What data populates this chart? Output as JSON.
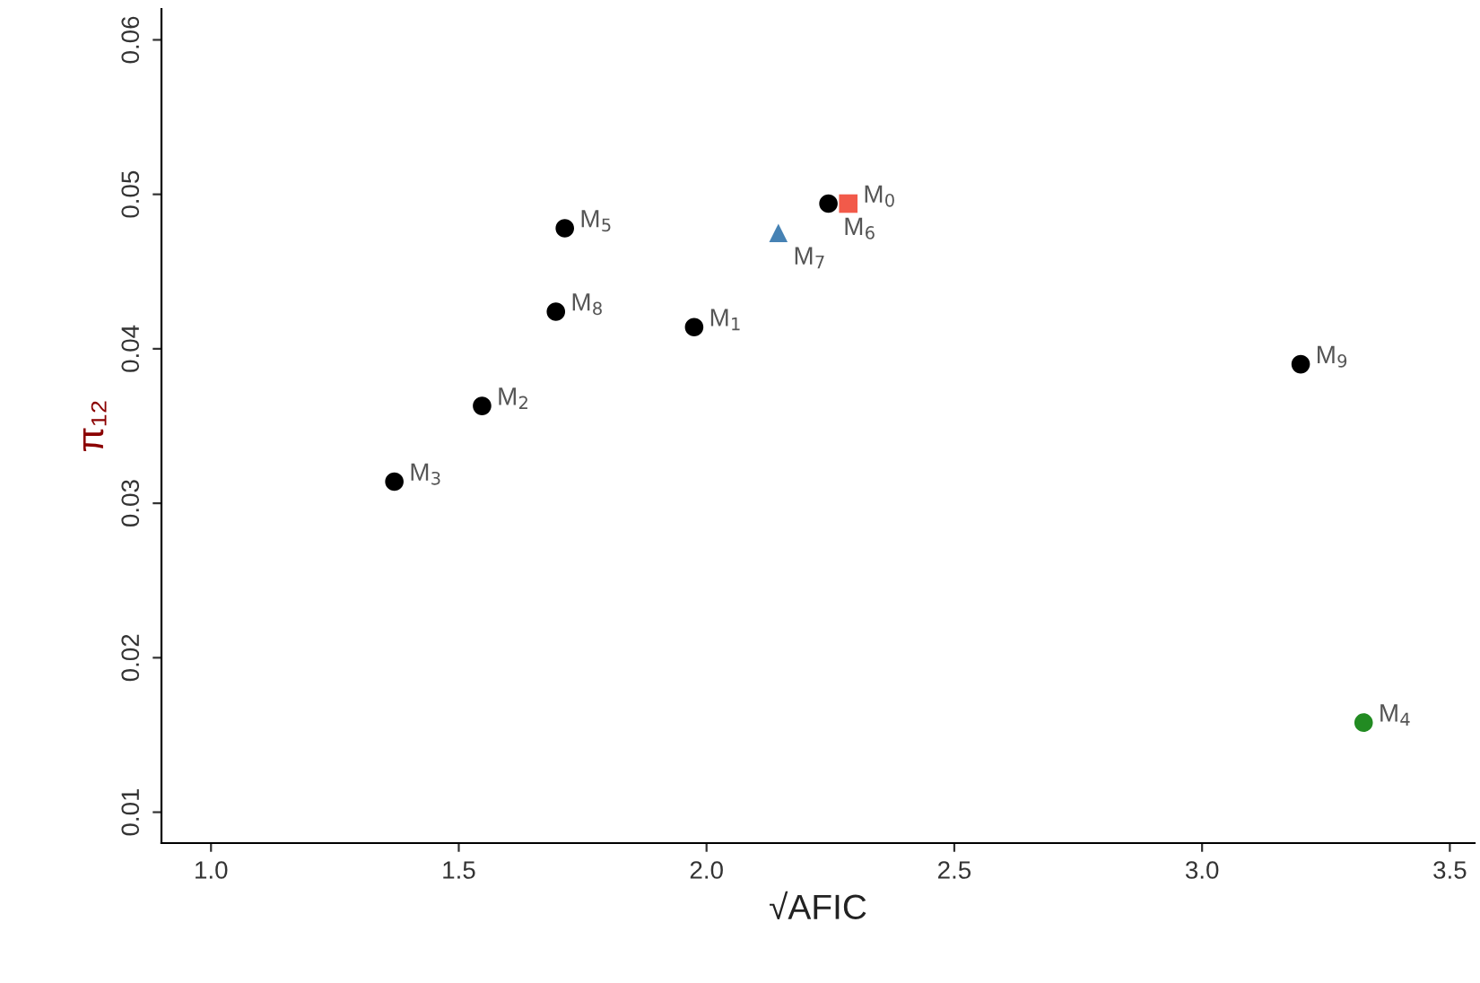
{
  "chart_data": {
    "type": "scatter",
    "xlabel": "√AFIC",
    "ylabel": "π₁₂",
    "xlim": [
      0.9,
      3.55
    ],
    "xticks": [
      {
        "value": 1.0,
        "label": "1.0"
      },
      {
        "value": 1.5,
        "label": "1.5"
      },
      {
        "value": 2.0,
        "label": "2.0"
      },
      {
        "value": 2.5,
        "label": "2.5"
      },
      {
        "value": 3.0,
        "label": "3.0"
      },
      {
        "value": 3.5,
        "label": "3.5"
      }
    ],
    "ylim": [
      0.008,
      0.062
    ],
    "yticks": [
      0.01,
      0.02,
      0.03,
      0.04,
      0.05,
      0.06
    ],
    "series": [
      {
        "color": "#000000",
        "marker": "circle",
        "x": [
          1.37,
          1.547,
          1.696,
          1.714,
          1.975,
          2.246,
          3.199
        ],
        "values": [
          0.0314,
          0.0363,
          0.0424,
          0.0478,
          0.0414,
          0.0494,
          0.039
        ]
      },
      {
        "color": "#f25a4a",
        "marker": "square",
        "x": [
          2.286
        ],
        "values": [
          0.0494
        ]
      },
      {
        "color": "#4682b4",
        "marker": "triangle",
        "x": [
          2.145
        ],
        "values": [
          0.0475
        ]
      },
      {
        "color": "#228b22",
        "marker": "circle",
        "x": [
          3.326
        ],
        "values": [
          0.0158
        ]
      }
    ],
    "annotations": [
      {
        "text": "M$_{3}$",
        "x": 1.37,
        "y": 0.0314
      },
      {
        "text": "M$_{2}$",
        "x": 1.547,
        "y": 0.0363
      },
      {
        "text": "M$_{8}$",
        "x": 1.696,
        "y": 0.0424
      },
      {
        "text": "M$_{5}$",
        "x": 1.714,
        "y": 0.0478
      },
      {
        "text": "M$_{1}$",
        "x": 1.975,
        "y": 0.0414
      },
      {
        "text": "M$_{6}$",
        "x": 2.246,
        "y": 0.0494
      },
      {
        "text": "M$_{9}$",
        "x": 3.199,
        "y": 0.039
      },
      {
        "text": "M$_{0}$",
        "x": 2.286,
        "y": 0.0494
      },
      {
        "text": "M$_{7}$",
        "x": 2.145,
        "y": 0.0475
      },
      {
        "text": "M$_{4}$",
        "x": 3.326,
        "y": 0.0158
      }
    ]
  }
}
